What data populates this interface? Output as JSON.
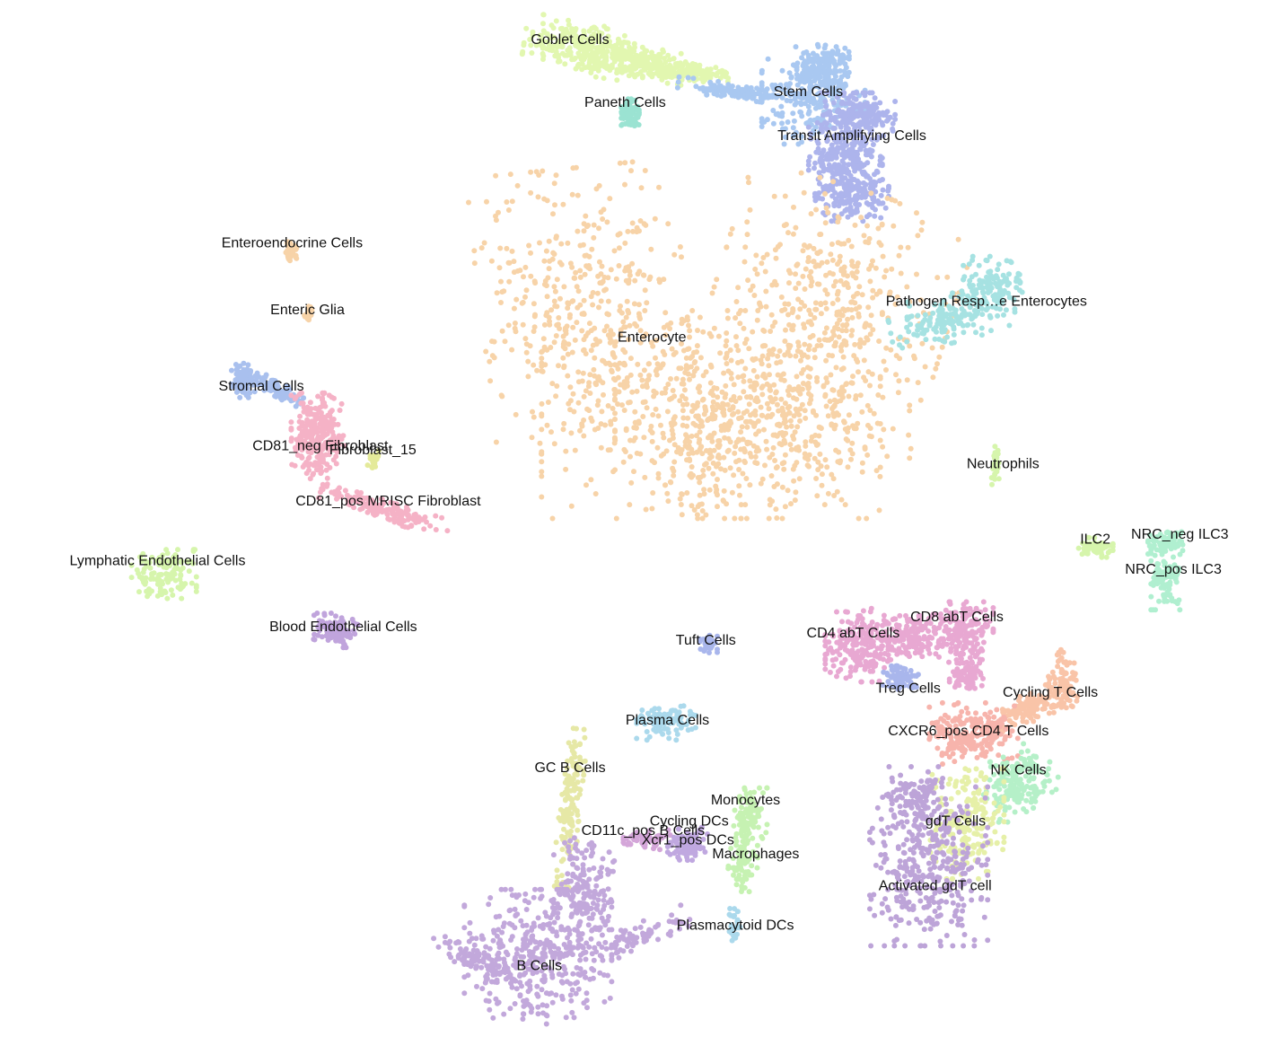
{
  "chart_data": {
    "type": "scatter",
    "title": "",
    "xlabel": "",
    "ylabel": "",
    "grid": false,
    "legend": "none",
    "series": [
      {
        "name": "Goblet Cells",
        "color": "#e2f7b0",
        "label": "Goblet Cells",
        "shapes": [
          [
            0.455,
            0.045,
            0.04,
            0.022,
            0.15,
            1
          ],
          [
            0.5,
            0.058,
            0.03,
            0.013,
            0.2,
            0.8
          ],
          [
            0.54,
            0.068,
            0.025,
            0.007,
            0.1,
            0.5
          ]
        ]
      },
      {
        "name": "Paneth Cells",
        "color": "#9be3d2",
        "label": "Paneth Cells",
        "shapes": [
          [
            0.492,
            0.107,
            0.006,
            0.012,
            0,
            0.3
          ]
        ]
      },
      {
        "name": "Stem Cells",
        "color": "#a9c8f1",
        "label": "Stem Cells",
        "shapes": [
          [
            0.575,
            0.086,
            0.04,
            0.006,
            0.13,
            0.5
          ],
          [
            0.635,
            0.09,
            0.035,
            0.04,
            0,
            1
          ],
          [
            0.645,
            0.065,
            0.02,
            0.02,
            0,
            0.4
          ]
        ]
      },
      {
        "name": "Transit Amplifying Cells",
        "color": "#adb4ec",
        "label": "Transit Amplifying Cells",
        "shapes": [
          [
            0.67,
            0.108,
            0.025,
            0.018,
            0,
            0.7
          ],
          [
            0.66,
            0.15,
            0.025,
            0.03,
            0,
            1
          ],
          [
            0.665,
            0.185,
            0.025,
            0.02,
            0,
            0.6
          ]
        ]
      },
      {
        "name": "Enterocyte",
        "color": "#f7d3a8",
        "label": "Enterocyte",
        "shapes": [
          [
            0.455,
            0.29,
            0.07,
            0.115,
            -0.1,
            1.6
          ],
          [
            0.65,
            0.285,
            0.08,
            0.095,
            0.3,
            1.6
          ],
          [
            0.555,
            0.39,
            0.115,
            0.085,
            0,
            2
          ],
          [
            0.595,
            0.4,
            0.1,
            0.065,
            0,
            1.2
          ]
        ]
      },
      {
        "name": "Pathogen Responsive Enterocytes",
        "color": "#a6e2e2",
        "label": "Pathogen Resp…e Enterocytes",
        "shapes": [
          [
            0.74,
            0.3,
            0.04,
            0.02,
            -0.2,
            0.6
          ],
          [
            0.775,
            0.27,
            0.02,
            0.025,
            0,
            0.5
          ]
        ]
      },
      {
        "name": "Enteroendocrine Cells",
        "color": "#f7d3a8",
        "label": "Enteroendocrine Cells",
        "shapes": [
          [
            0.227,
            0.236,
            0.004,
            0.008,
            0,
            0.15
          ]
        ]
      },
      {
        "name": "Enteric Glia",
        "color": "#f7d3a8",
        "label": "Enteric Glia",
        "shapes": [
          [
            0.241,
            0.294,
            0.003,
            0.006,
            0,
            0.1
          ]
        ]
      },
      {
        "name": "Stromal Cells",
        "color": "#a9c0ee",
        "label": "Stromal Cells",
        "shapes": [
          [
            0.19,
            0.358,
            0.008,
            0.014,
            0,
            0.3
          ],
          [
            0.215,
            0.365,
            0.02,
            0.006,
            0.5,
            0.4
          ]
        ]
      },
      {
        "name": "CD81_neg Fibroblast",
        "color": "#f5b2c6",
        "label": "CD81_neg Fibroblast",
        "shapes": [
          [
            0.248,
            0.41,
            0.018,
            0.035,
            0,
            1
          ]
        ]
      },
      {
        "name": "Fibroblast_15",
        "color": "#e4ea9a",
        "label": "Fibroblast_15",
        "shapes": [
          [
            0.291,
            0.432,
            0.004,
            0.007,
            0,
            0.1
          ]
        ]
      },
      {
        "name": "CD81_pos MRISC Fibroblast",
        "color": "#f5b2c6",
        "label": "CD81_pos MRISC Fibroblast",
        "shapes": [
          [
            0.3,
            0.48,
            0.045,
            0.008,
            0.3,
            0.6
          ]
        ]
      },
      {
        "name": "Lymphatic Endothelial Cells",
        "color": "#d6f5ac",
        "label": "Lymphatic Endothelial Cells",
        "shapes": [
          [
            0.128,
            0.54,
            0.022,
            0.02,
            0,
            0.5
          ]
        ]
      },
      {
        "name": "Blood Endothelial Cells",
        "color": "#c0a4dc",
        "label": "Blood Endothelial Cells",
        "shapes": [
          [
            0.262,
            0.593,
            0.015,
            0.014,
            0,
            0.4
          ]
        ]
      },
      {
        "name": "Neutrophils",
        "color": "#d6f5ac",
        "label": "Neutrophils",
        "shapes": [
          [
            0.777,
            0.437,
            0.003,
            0.018,
            0,
            0.1
          ]
        ]
      },
      {
        "name": "ILC2",
        "color": "#d6f5ac",
        "label": "ILC2",
        "shapes": [
          [
            0.855,
            0.515,
            0.012,
            0.008,
            0,
            0.2
          ]
        ]
      },
      {
        "name": "NRC_neg ILC3",
        "color": "#b0efd0",
        "label": "NRC_neg ILC3",
        "shapes": [
          [
            0.91,
            0.51,
            0.012,
            0.01,
            0,
            0.3
          ]
        ]
      },
      {
        "name": "NRC_pos ILC3",
        "color": "#b0efd0",
        "label": "NRC_pos ILC3",
        "shapes": [
          [
            0.91,
            0.545,
            0.01,
            0.025,
            0,
            0.4
          ]
        ]
      },
      {
        "name": "CD4 abT Cells",
        "color": "#e8a8d2",
        "label": "CD4 abT Cells",
        "shapes": [
          [
            0.673,
            0.607,
            0.025,
            0.03,
            0,
            0.9
          ],
          [
            0.71,
            0.6,
            0.02,
            0.018,
            0,
            0.5
          ]
        ]
      },
      {
        "name": "CD8 abT Cells",
        "color": "#e8a8d2",
        "label": "CD8 abT Cells",
        "shapes": [
          [
            0.75,
            0.595,
            0.022,
            0.025,
            0,
            0.7
          ],
          [
            0.755,
            0.635,
            0.012,
            0.015,
            0,
            0.3
          ]
        ]
      },
      {
        "name": "Treg Cells",
        "color": "#a9b6ec",
        "label": "Treg Cells",
        "shapes": [
          [
            0.703,
            0.638,
            0.012,
            0.01,
            0,
            0.3
          ]
        ]
      },
      {
        "name": "Cycling T Cells",
        "color": "#f9c4a8",
        "label": "Cycling T Cells",
        "shapes": [
          [
            0.805,
            0.665,
            0.03,
            0.012,
            -0.4,
            0.5
          ],
          [
            0.83,
            0.64,
            0.01,
            0.025,
            0,
            0.3
          ]
        ]
      },
      {
        "name": "CXCR6_pos CD4 T Cells",
        "color": "#f7b4ac",
        "label": "CXCR6_pos CD4 T Cells",
        "shapes": [
          [
            0.76,
            0.69,
            0.03,
            0.025,
            0,
            0.8
          ]
        ]
      },
      {
        "name": "NK Cells",
        "color": "#b5f0c8",
        "label": "NK Cells",
        "shapes": [
          [
            0.795,
            0.735,
            0.025,
            0.025,
            -0.5,
            0.7
          ]
        ]
      },
      {
        "name": "gdT Cells",
        "color": "#e6f0a8",
        "label": "gdT Cells",
        "shapes": [
          [
            0.755,
            0.775,
            0.025,
            0.045,
            0,
            0.8
          ]
        ]
      },
      {
        "name": "Activated gdT cell",
        "color": "#bda4d8",
        "label": "Activated gdT cell",
        "shapes": [
          [
            0.725,
            0.815,
            0.04,
            0.065,
            0,
            1.4
          ],
          [
            0.715,
            0.75,
            0.02,
            0.025,
            0,
            0.4
          ]
        ]
      },
      {
        "name": "Tuft Cells",
        "color": "#a9b6ec",
        "label": "Tuft Cells",
        "shapes": [
          [
            0.553,
            0.606,
            0.006,
            0.008,
            0,
            0.1
          ]
        ]
      },
      {
        "name": "Plasma Cells",
        "color": "#abd9ec",
        "label": "Plasma Cells",
        "shapes": [
          [
            0.52,
            0.68,
            0.02,
            0.014,
            0,
            0.4
          ]
        ]
      },
      {
        "name": "GC B Cells",
        "color": "#e6e8a6",
        "label": "GC B Cells",
        "shapes": [
          [
            0.445,
            0.76,
            0.007,
            0.065,
            0.1,
            0.6
          ]
        ]
      },
      {
        "name": "CD11c_pos B Cells",
        "color": "#d4a6d9",
        "label": "CD11c_pos B Cells",
        "shapes": [
          [
            0.505,
            0.79,
            0.016,
            0.008,
            0,
            0.2
          ]
        ]
      },
      {
        "name": "Cycling DCs",
        "color": "#c0a8e0",
        "label": "Cycling DCs",
        "shapes": [
          [
            0.54,
            0.79,
            0.012,
            0.01,
            0,
            0.2
          ]
        ]
      },
      {
        "name": "Xcr1_pos DCs",
        "color": "#c0a8e0",
        "label": "Xcr1_pos DCs",
        "shapes": [
          [
            0.535,
            0.8,
            0.012,
            0.008,
            0,
            0.2
          ]
        ]
      },
      {
        "name": "Monocytes",
        "color": "#c6f2b2",
        "label": "Monocytes",
        "shapes": [
          [
            0.585,
            0.77,
            0.012,
            0.025,
            0,
            0.4
          ]
        ]
      },
      {
        "name": "Macrophages",
        "color": "#c6f2b2",
        "label": "Macrophages",
        "shapes": [
          [
            0.58,
            0.81,
            0.01,
            0.025,
            0,
            0.3
          ]
        ]
      },
      {
        "name": "Plasmacytoid DCs",
        "color": "#abd9ec",
        "label": "Plasmacytoid DCs",
        "shapes": [
          [
            0.573,
            0.87,
            0.005,
            0.014,
            0,
            0.1
          ]
        ]
      },
      {
        "name": "B Cells",
        "color": "#c2a8db",
        "label": "B Cells",
        "shapes": [
          [
            0.42,
            0.9,
            0.05,
            0.055,
            0,
            1.5
          ],
          [
            0.455,
            0.84,
            0.022,
            0.045,
            0,
            0.7
          ],
          [
            0.37,
            0.9,
            0.03,
            0.01,
            0.4,
            0.3
          ],
          [
            0.5,
            0.88,
            0.035,
            0.01,
            -0.4,
            0.3
          ]
        ]
      }
    ],
    "labels": [
      {
        "text": "Goblet Cells",
        "lx": 0.445,
        "ly": 0.038
      },
      {
        "text": "Paneth Cells",
        "lx": 0.488,
        "ly": 0.097
      },
      {
        "text": "Stem Cells",
        "lx": 0.631,
        "ly": 0.087
      },
      {
        "text": "Transit Amplifying Cells",
        "lx": 0.665,
        "ly": 0.128
      },
      {
        "text": "Enteroendocrine Cells",
        "lx": 0.228,
        "ly": 0.229
      },
      {
        "text": "Enteric Glia",
        "lx": 0.24,
        "ly": 0.292
      },
      {
        "text": "Pathogen Resp…e Enterocytes",
        "lx": 0.77,
        "ly": 0.284
      },
      {
        "text": "Enterocyte",
        "lx": 0.509,
        "ly": 0.318
      },
      {
        "text": "Stromal Cells",
        "lx": 0.204,
        "ly": 0.364
      },
      {
        "text": "CD81_neg Fibroblast",
        "lx": 0.25,
        "ly": 0.42
      },
      {
        "text": "Fibroblast_15",
        "lx": 0.291,
        "ly": 0.424
      },
      {
        "text": "Neutrophils",
        "lx": 0.783,
        "ly": 0.437
      },
      {
        "text": "CD81_pos MRISC Fibroblast",
        "lx": 0.303,
        "ly": 0.472
      },
      {
        "text": "ILC2",
        "lx": 0.855,
        "ly": 0.508
      },
      {
        "text": "NRC_neg ILC3",
        "lx": 0.921,
        "ly": 0.503
      },
      {
        "text": "Lymphatic Endothelial Cells",
        "lx": 0.123,
        "ly": 0.528
      },
      {
        "text": "NRC_pos ILC3",
        "lx": 0.916,
        "ly": 0.536
      },
      {
        "text": "CD8 abT Cells",
        "lx": 0.747,
        "ly": 0.581
      },
      {
        "text": "Blood Endothelial Cells",
        "lx": 0.268,
        "ly": 0.59
      },
      {
        "text": "CD4 abT Cells",
        "lx": 0.666,
        "ly": 0.596
      },
      {
        "text": "Tuft Cells",
        "lx": 0.551,
        "ly": 0.603
      },
      {
        "text": "Treg Cells",
        "lx": 0.709,
        "ly": 0.648
      },
      {
        "text": "Cycling T Cells",
        "lx": 0.82,
        "ly": 0.652
      },
      {
        "text": "Plasma Cells",
        "lx": 0.521,
        "ly": 0.678
      },
      {
        "text": "CXCR6_pos CD4 T Cells",
        "lx": 0.756,
        "ly": 0.688
      },
      {
        "text": "GC B Cells",
        "lx": 0.445,
        "ly": 0.723
      },
      {
        "text": "NK Cells",
        "lx": 0.795,
        "ly": 0.725
      },
      {
        "text": "Monocytes",
        "lx": 0.582,
        "ly": 0.753
      },
      {
        "text": "Cycling DCs",
        "lx": 0.538,
        "ly": 0.773
      },
      {
        "text": "gdT Cells",
        "lx": 0.746,
        "ly": 0.773
      },
      {
        "text": "CD11c_pos B Cells",
        "lx": 0.502,
        "ly": 0.782
      },
      {
        "text": "Xcr1_pos DCs",
        "lx": 0.537,
        "ly": 0.791
      },
      {
        "text": "Macrophages",
        "lx": 0.59,
        "ly": 0.804
      },
      {
        "text": "Activated gdT cell",
        "lx": 0.73,
        "ly": 0.834
      },
      {
        "text": "Plasmacytoid DCs",
        "lx": 0.574,
        "ly": 0.871
      },
      {
        "text": "B Cells",
        "lx": 0.421,
        "ly": 0.909
      }
    ]
  }
}
